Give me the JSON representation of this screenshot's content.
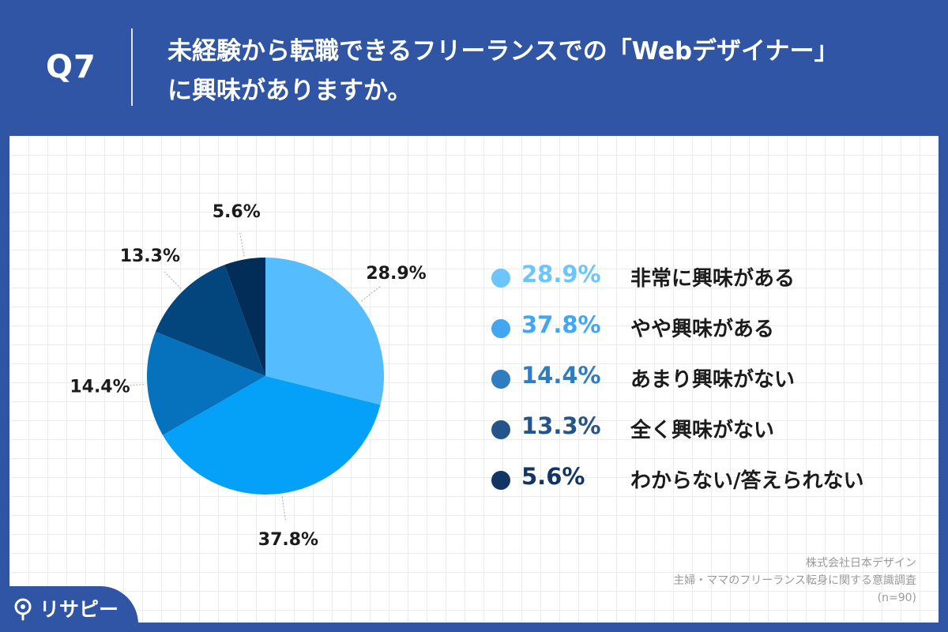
{
  "header": {
    "qnum": "Q7",
    "question_line1": "未経験から転職できるフリーランスでの「Webデザイナー」",
    "question_line2": "に興味がありますか。"
  },
  "chart_data": {
    "type": "pie",
    "slices": [
      {
        "label": "非常に興味がある",
        "value": 28.9,
        "display": "28.9%",
        "color": "#55bdfd"
      },
      {
        "label": "やや興味がある",
        "value": 37.8,
        "display": "37.8%",
        "color": "#05a0f8"
      },
      {
        "label": "あまり興味がない",
        "value": 14.4,
        "display": "14.4%",
        "color": "#0672bd"
      },
      {
        "label": "全く興味がない",
        "value": 13.3,
        "display": "13.3%",
        "color": "#02467d"
      },
      {
        "label": "わからない/答えられない",
        "value": 5.6,
        "display": "5.6%",
        "color": "#012d58"
      }
    ],
    "start": "12 o'clock",
    "direction": "clockwise",
    "legend_position": "right"
  },
  "legend_colors": [
    "#6cc6fd",
    "#42a6f3",
    "#2f7cc0",
    "#24548c",
    "#133565"
  ],
  "source": {
    "company": "株式会社日本デザイン",
    "survey": "主婦・ママのフリーランス転身に関する意識調査",
    "n": "(n=90)"
  },
  "brand": {
    "name": "リサピー"
  },
  "colors": {
    "background": "#2f55a4",
    "text": "#1b1b1b"
  }
}
